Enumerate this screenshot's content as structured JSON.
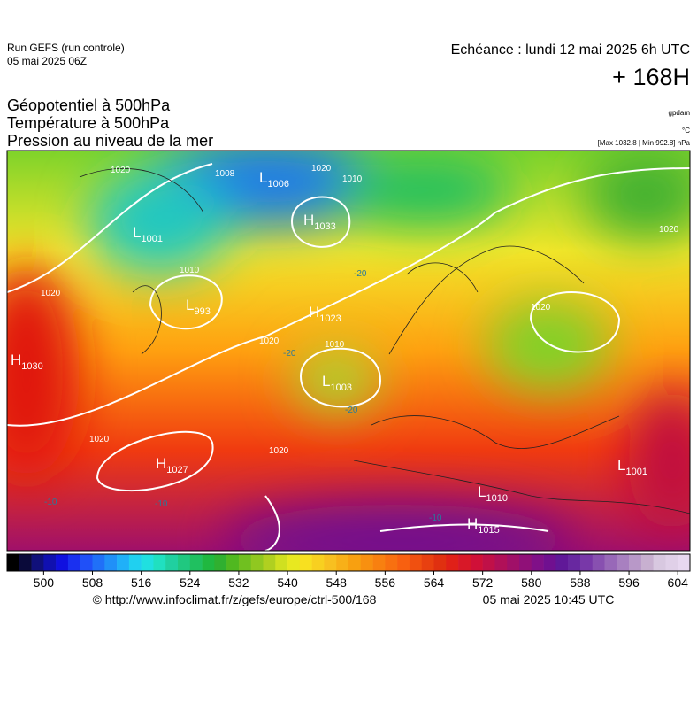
{
  "header": {
    "run": "Run GEFS (run controle)",
    "run_date": "05 mai 2025 06Z",
    "valid": "Echéance : lundi 12 mai 2025 6h UTC",
    "lead": "+ 168H"
  },
  "legend": {
    "lines": [
      "Géopotentiel à 500hPa",
      "Température à 500hPa",
      "Pression au niveau de la mer"
    ],
    "units": [
      "gpdam",
      "°C",
      "[Max 1032.8 | Min 992.8] hPa"
    ]
  },
  "map": {
    "centers": [
      {
        "kind": "H",
        "value": "1030"
      },
      {
        "kind": "L",
        "value": "1001"
      },
      {
        "kind": "L",
        "value": "1006"
      },
      {
        "kind": "H",
        "value": "1033"
      },
      {
        "kind": "L",
        "value": "993"
      },
      {
        "kind": "H",
        "value": "1023"
      },
      {
        "kind": "L",
        "value": "1003"
      },
      {
        "kind": "H",
        "value": "1027"
      },
      {
        "kind": "L",
        "value": "1010"
      },
      {
        "kind": "H",
        "value": "1015"
      },
      {
        "kind": "L",
        "value": "1001"
      }
    ],
    "isobar_labels": [
      "1020",
      "1008",
      "1020",
      "1010",
      "1020",
      "1010",
      "1020",
      "1010",
      "1020",
      "1020",
      "1020",
      "1020"
    ],
    "temp_labels": [
      "-20",
      "-20",
      "-20",
      "-10",
      "-10",
      "-10"
    ]
  },
  "colorbar": {
    "ticks": [
      500,
      508,
      516,
      524,
      532,
      540,
      548,
      556,
      564,
      572,
      580,
      588,
      596,
      604
    ]
  },
  "footer": {
    "source": "© http://www.infoclimat.fr/z/gefs/europe/ctrl-500/168",
    "generated": "05 mai 2025 10:45 UTC"
  }
}
